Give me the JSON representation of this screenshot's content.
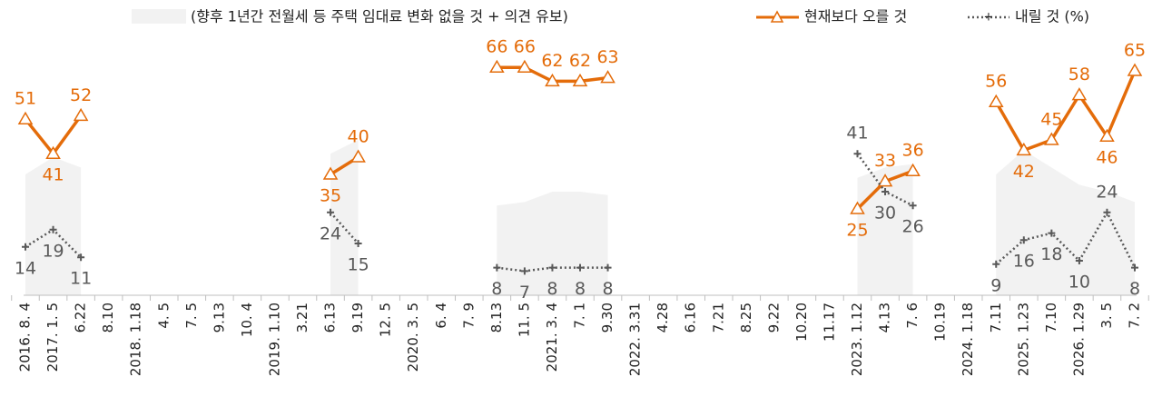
{
  "chart_data": {
    "type": "line",
    "categories": [
      "2016. 8. 4",
      "2017. 1. 5",
      "6.22",
      "8.10",
      "2018. 1.18",
      "4. 5",
      "7. 5",
      "9.13",
      "10. 4",
      "2019. 1.10",
      "3.21",
      "6.13",
      "9.19",
      "12. 5",
      "2020. 3. 5",
      "6. 4",
      "7. 9",
      "8.13",
      "11. 5",
      "2021. 3. 4",
      "7. 1",
      "9.30",
      "2022. 3.31",
      "4.28",
      "6.16",
      "7.21",
      "8.25",
      "9.22",
      "10.20",
      "11.17",
      "2023. 1.12",
      "4.13",
      "7. 6",
      "10.19",
      "2024. 1.18",
      "7.11",
      "2025. 1.23",
      "7.10",
      "2026. 1.29",
      "3. 5",
      "7. 2"
    ],
    "series": [
      {
        "name": "(향후 1년간 전월세 등 주택 임대료 변화 없을 것 + 의견 유보)",
        "color": "#f2f2f2",
        "kind": "area",
        "values": [
          35,
          40,
          37,
          null,
          null,
          null,
          null,
          null,
          null,
          null,
          null,
          41,
          45,
          null,
          null,
          null,
          null,
          26,
          27,
          30,
          30,
          29,
          null,
          null,
          null,
          null,
          null,
          null,
          null,
          null,
          34,
          37,
          38,
          null,
          null,
          35,
          42,
          37,
          32,
          30,
          27
        ]
      },
      {
        "name": "현재보다 오를 것",
        "color": "#e46c0a",
        "kind": "line",
        "values": [
          51,
          41,
          52,
          null,
          null,
          null,
          null,
          null,
          null,
          null,
          null,
          35,
          40,
          null,
          null,
          null,
          null,
          66,
          66,
          62,
          62,
          63,
          null,
          null,
          null,
          null,
          null,
          null,
          null,
          null,
          25,
          33,
          36,
          null,
          null,
          56,
          42,
          45,
          58,
          46,
          65
        ]
      },
      {
        "name": "내릴 것 (%)",
        "color": "#595959",
        "kind": "dotted",
        "values": [
          14,
          19,
          11,
          null,
          null,
          null,
          null,
          null,
          null,
          null,
          null,
          24,
          15,
          null,
          null,
          null,
          null,
          8,
          7,
          8,
          8,
          8,
          null,
          null,
          null,
          null,
          null,
          null,
          null,
          null,
          41,
          30,
          26,
          null,
          null,
          9,
          16,
          18,
          10,
          24,
          8
        ]
      }
    ],
    "ylim": [
      0,
      70
    ]
  }
}
